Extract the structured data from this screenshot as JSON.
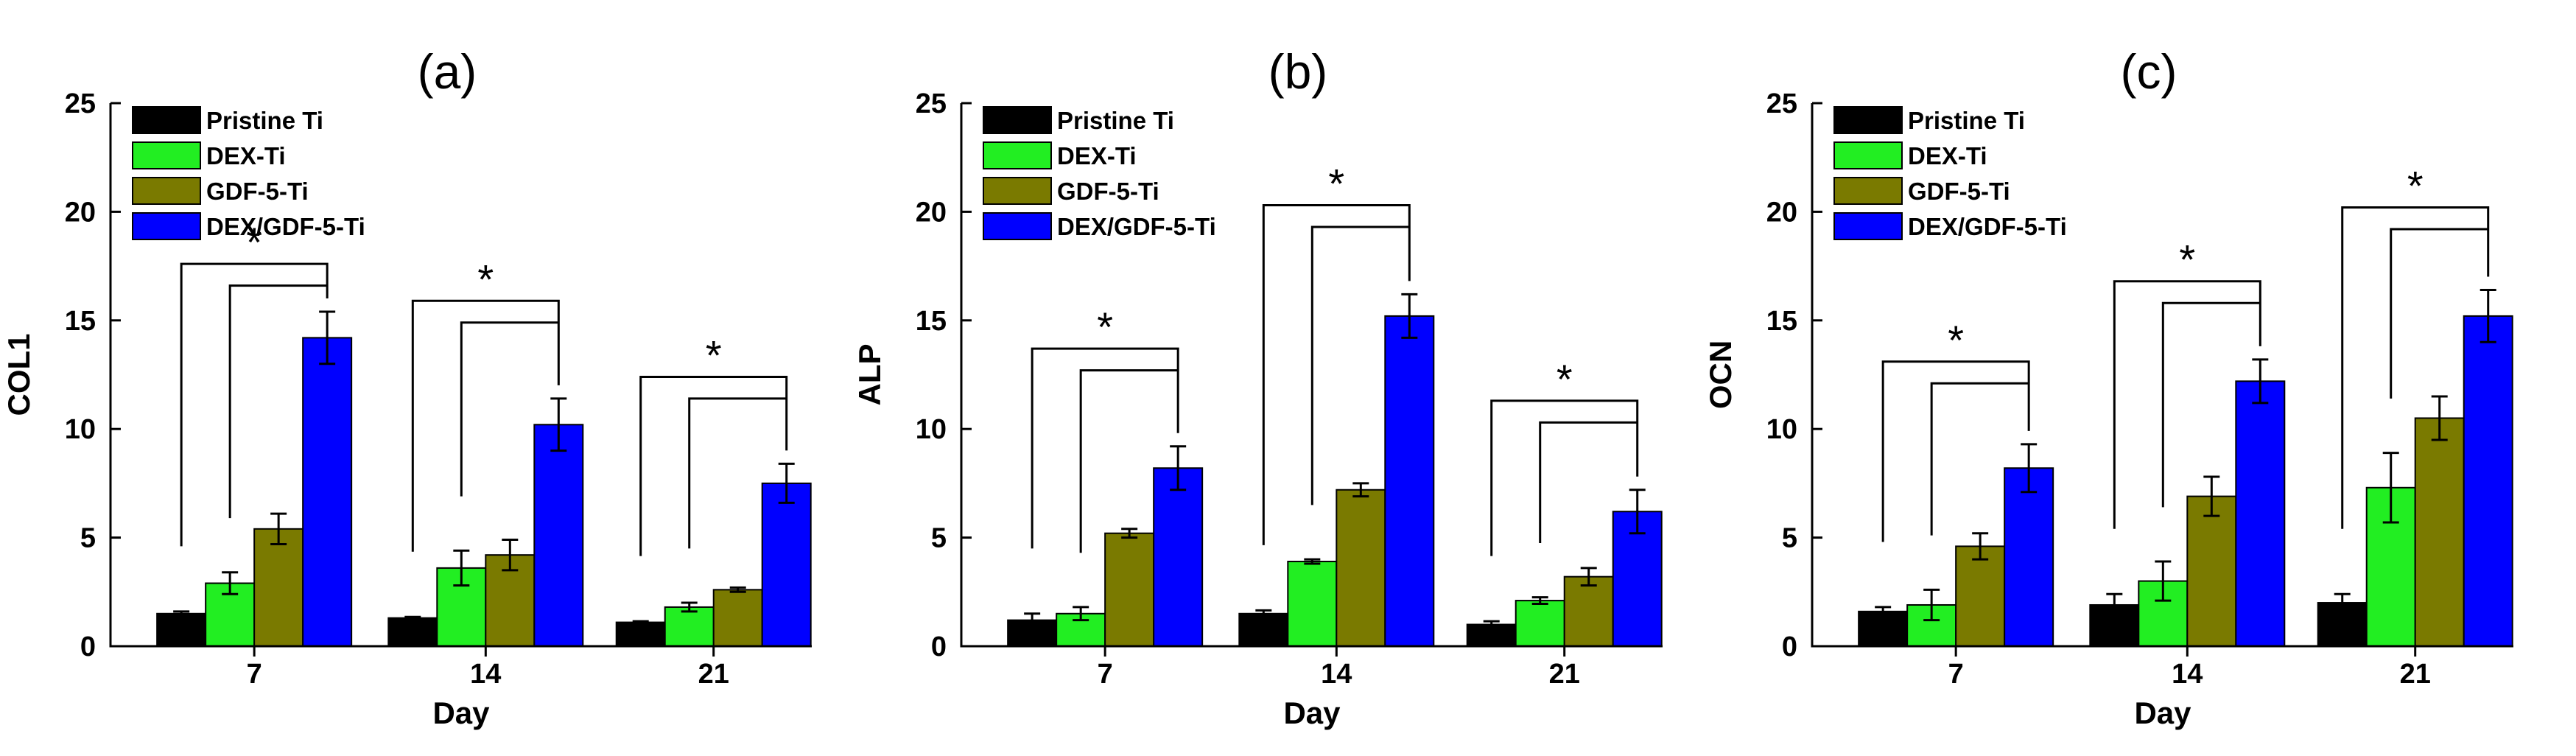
{
  "colors": {
    "Pristine Ti": "#000000",
    "DEX-Ti": "#22ee22",
    "GDF-5-Ti": "#7a7a00",
    "DEX/GDF-5-Ti": "#0000ff"
  },
  "chart_data": [
    {
      "type": "bar",
      "title": "(a)",
      "xlabel": "Day",
      "ylabel": "COL1",
      "ylim": [
        0,
        25
      ],
      "yticks": [
        0,
        5,
        10,
        15,
        20,
        25
      ],
      "categories": [
        "7",
        "14",
        "21"
      ],
      "legend_position": "top-left",
      "series": [
        {
          "name": "Pristine Ti",
          "values": [
            1.5,
            1.3,
            1.1
          ],
          "errors": [
            0.1,
            0.05,
            0.05
          ]
        },
        {
          "name": "DEX-Ti",
          "values": [
            2.9,
            3.6,
            1.8
          ],
          "errors": [
            0.5,
            0.8,
            0.2
          ]
        },
        {
          "name": "GDF-5-Ti",
          "values": [
            5.4,
            4.2,
            2.6
          ],
          "errors": [
            0.7,
            0.7,
            0.1
          ]
        },
        {
          "name": "DEX/GDF-5-Ti",
          "values": [
            14.2,
            10.2,
            7.5
          ],
          "errors": [
            1.2,
            1.2,
            0.9
          ]
        }
      ],
      "annotations": [
        {
          "category": "7",
          "label": "*",
          "outer_top": 17.6,
          "inner_top": 16.6
        },
        {
          "category": "14",
          "label": "*",
          "outer_top": 15.9,
          "inner_top": 14.9
        },
        {
          "category": "21",
          "label": "*",
          "outer_top": 12.4,
          "inner_top": 11.4
        }
      ]
    },
    {
      "type": "bar",
      "title": "(b)",
      "xlabel": "Day",
      "ylabel": "ALP",
      "ylim": [
        0,
        25
      ],
      "yticks": [
        0,
        5,
        10,
        15,
        20,
        25
      ],
      "categories": [
        "7",
        "14",
        "21"
      ],
      "legend_position": "top-left",
      "series": [
        {
          "name": "Pristine Ti",
          "values": [
            1.2,
            1.5,
            1.0
          ],
          "errors": [
            0.3,
            0.15,
            0.15
          ]
        },
        {
          "name": "DEX-Ti",
          "values": [
            1.5,
            3.9,
            2.1
          ],
          "errors": [
            0.3,
            0.1,
            0.15
          ]
        },
        {
          "name": "GDF-5-Ti",
          "values": [
            5.2,
            7.2,
            3.2
          ],
          "errors": [
            0.2,
            0.3,
            0.4
          ]
        },
        {
          "name": "DEX/GDF-5-Ti",
          "values": [
            8.2,
            15.2,
            6.2
          ],
          "errors": [
            1.0,
            1.0,
            1.0
          ]
        }
      ],
      "annotations": [
        {
          "category": "7",
          "label": "*",
          "outer_top": 13.7,
          "inner_top": 12.7
        },
        {
          "category": "14",
          "label": "*",
          "outer_top": 20.3,
          "inner_top": 19.3
        },
        {
          "category": "21",
          "label": "*",
          "outer_top": 11.3,
          "inner_top": 10.3
        }
      ]
    },
    {
      "type": "bar",
      "title": "(c)",
      "xlabel": "Day",
      "ylabel": "OCN",
      "ylim": [
        0,
        25
      ],
      "yticks": [
        0,
        5,
        10,
        15,
        20,
        25
      ],
      "categories": [
        "7",
        "14",
        "21"
      ],
      "legend_position": "top-left",
      "series": [
        {
          "name": "Pristine Ti",
          "values": [
            1.6,
            1.9,
            2.0
          ],
          "errors": [
            0.2,
            0.5,
            0.4
          ]
        },
        {
          "name": "DEX-Ti",
          "values": [
            1.9,
            3.0,
            7.3
          ],
          "errors": [
            0.7,
            0.9,
            1.6
          ]
        },
        {
          "name": "GDF-5-Ti",
          "values": [
            4.6,
            6.9,
            10.5
          ],
          "errors": [
            0.6,
            0.9,
            1.0
          ]
        },
        {
          "name": "DEX/GDF-5-Ti",
          "values": [
            8.2,
            12.2,
            15.2
          ],
          "errors": [
            1.1,
            1.0,
            1.2
          ]
        }
      ],
      "annotations": [
        {
          "category": "7",
          "label": "*",
          "outer_top": 13.1,
          "inner_top": 12.1
        },
        {
          "category": "14",
          "label": "*",
          "outer_top": 16.8,
          "inner_top": 15.8
        },
        {
          "category": "21",
          "label": "*",
          "outer_top": 20.2,
          "inner_top": 19.2
        }
      ]
    }
  ]
}
